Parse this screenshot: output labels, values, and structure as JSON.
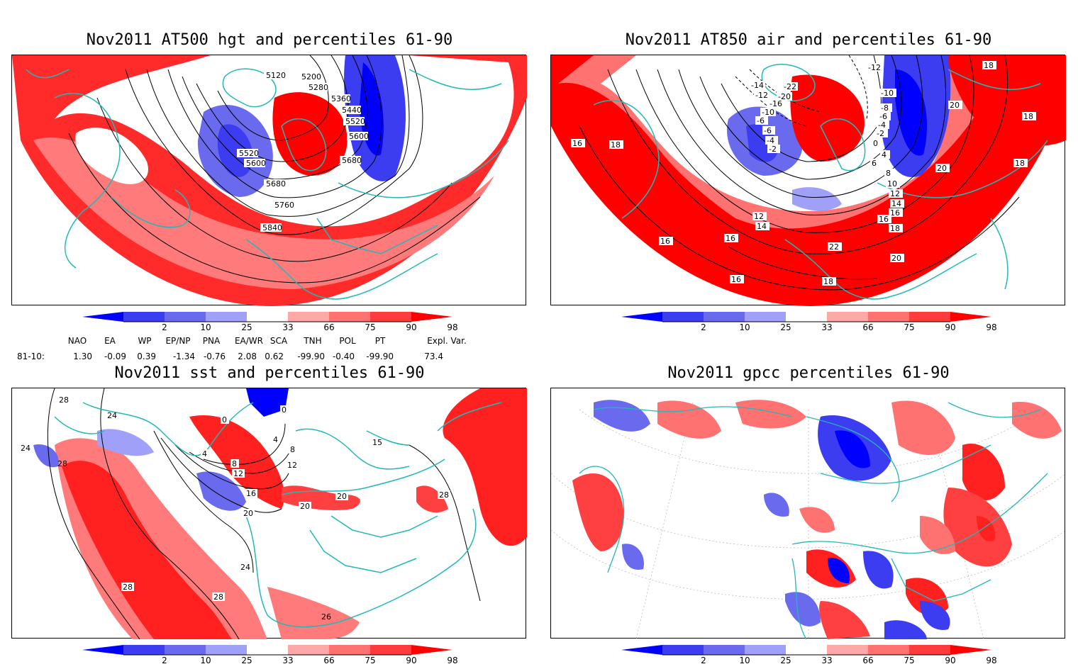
{
  "panels": [
    {
      "title": "Nov2011 AT500 hgt and percentiles 61-90",
      "contour_labels": [
        "5120",
        "5200",
        "5280",
        "5360",
        "5440",
        "5520",
        "5600",
        "5680",
        "5520",
        "5600",
        "5680",
        "5760",
        "5840"
      ]
    },
    {
      "title": "Nov2011 AT850 air and percentiles 61-90",
      "contour_labels": [
        "-12",
        "-14",
        "-12",
        "-22",
        "-20",
        "-16",
        "-10",
        "-6",
        "-6",
        "-4",
        "-2",
        "-10",
        "-8",
        "-6",
        "-4",
        "-2",
        "0",
        "4",
        "6",
        "8",
        "10",
        "12",
        "14",
        "16",
        "18",
        "20",
        "22",
        "16",
        "16",
        "16",
        "18",
        "18",
        "18",
        "20",
        "16",
        "12",
        "14",
        "16",
        "18",
        "18",
        "20"
      ]
    },
    {
      "title": "Nov2011 sst and percentiles 61-90",
      "contour_labels": [
        "28",
        "24",
        "24",
        "28",
        "0",
        "0",
        "4",
        "4",
        "8",
        "8",
        "12",
        "12",
        "16",
        "20",
        "20",
        "20",
        "24",
        "28",
        "28",
        "28",
        "15",
        "26"
      ]
    },
    {
      "title": "Nov2011 gpcc percentiles 61-90",
      "contour_labels": []
    }
  ],
  "colorbar": {
    "ticks": [
      "2",
      "10",
      "25",
      "33",
      "66",
      "75",
      "90",
      "98"
    ],
    "colors": [
      "#0000ff",
      "#3c3cf0",
      "#6a6aee",
      "#a0a0f8",
      "#ffffff",
      "#ffa8a8",
      "#ff7272",
      "#ff3c3c",
      "#ff0000"
    ]
  },
  "indices": {
    "headers": [
      "NAO",
      "EA",
      "WP",
      "EP/NP",
      "PNA",
      "EA/WR",
      "SCA",
      "TNH",
      "POL",
      "PT",
      "Expl. Var."
    ],
    "row_label": "81-10:",
    "values": [
      "1.30",
      "-0.09",
      "0.39",
      "-1.34",
      "-0.76",
      "2.08",
      "0.62",
      "-99.90",
      "-0.40",
      "-99.90",
      "73.4"
    ]
  },
  "colors": {
    "coast": "#22b8b8",
    "red": "#ff1010",
    "blue": "#1e1ef0"
  }
}
